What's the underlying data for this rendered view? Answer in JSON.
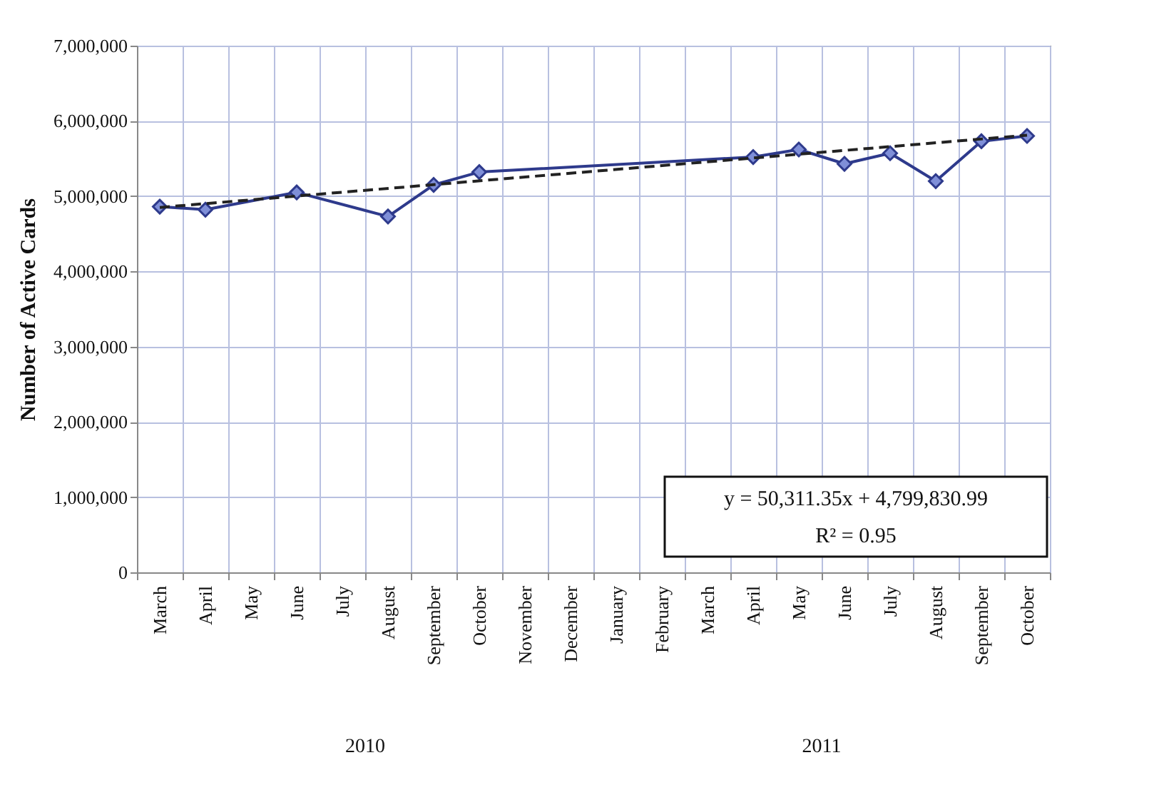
{
  "chart_data": {
    "type": "line",
    "ylabel": "Number of Active Cards",
    "categories": [
      "March",
      "April",
      "May",
      "June",
      "July",
      "August",
      "September",
      "October",
      "November",
      "December",
      "January",
      "February",
      "March",
      "April",
      "May",
      "June",
      "July",
      "August",
      "September",
      "October"
    ],
    "series": [
      {
        "color": "#2e3a8c",
        "marker": "diamond",
        "values": [
          4860000,
          4820000,
          null,
          5050000,
          null,
          4730000,
          5150000,
          5320000,
          null,
          null,
          null,
          null,
          null,
          5520000,
          5620000,
          5430000,
          5570000,
          5200000,
          5730000,
          5800000
        ]
      },
      {
        "type": "line",
        "color": "#222222",
        "line_style": "dashed",
        "marker": "none",
        "values": [
          4850000,
          null,
          null,
          null,
          null,
          null,
          null,
          null,
          null,
          null,
          null,
          null,
          null,
          null,
          null,
          null,
          null,
          null,
          null,
          5810000
        ]
      }
    ],
    "ylim": [
      0,
      7000000
    ],
    "yticks": [
      0,
      {
        "value": 1000000,
        "label": "1,000,000"
      },
      {
        "value": 2000000,
        "label": "2,000,000"
      },
      {
        "value": 3000000,
        "label": "3,000,000"
      },
      {
        "value": 4000000,
        "label": "4,000,000"
      },
      {
        "value": 5000000,
        "label": "5,000,000"
      },
      {
        "value": 6000000,
        "label": "6,000,000"
      },
      {
        "value": 7000000,
        "label": "7,000,000"
      }
    ],
    "grid": true,
    "annotations": [
      "2010",
      "2011",
      "y = 50,311.35x + 4,799,830.99",
      "R² = 0.95"
    ]
  }
}
